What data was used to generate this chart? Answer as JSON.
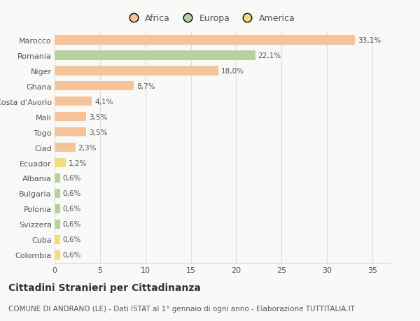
{
  "categories": [
    "Marocco",
    "Romania",
    "Niger",
    "Ghana",
    "Costa d'Avorio",
    "Mali",
    "Togo",
    "Ciad",
    "Ecuador",
    "Albania",
    "Bulgaria",
    "Polonia",
    "Svizzera",
    "Cuba",
    "Colombia"
  ],
  "values": [
    33.1,
    22.1,
    18.0,
    8.7,
    4.1,
    3.5,
    3.5,
    2.3,
    1.2,
    0.6,
    0.6,
    0.6,
    0.6,
    0.6,
    0.6
  ],
  "labels": [
    "33,1%",
    "22,1%",
    "18,0%",
    "8,7%",
    "4,1%",
    "3,5%",
    "3,5%",
    "2,3%",
    "1,2%",
    "0,6%",
    "0,6%",
    "0,6%",
    "0,6%",
    "0,6%",
    "0,6%"
  ],
  "colors": [
    "#f5c49a",
    "#b8cfa0",
    "#f5c49a",
    "#f5c49a",
    "#f5c49a",
    "#f5c49a",
    "#f5c49a",
    "#f5c49a",
    "#f5dc7a",
    "#b8cfa0",
    "#b8cfa0",
    "#b8cfa0",
    "#b8cfa0",
    "#f5dc7a",
    "#f5dc7a"
  ],
  "legend_labels": [
    "Africa",
    "Europa",
    "America"
  ],
  "legend_colors": [
    "#f5c49a",
    "#b8cfa0",
    "#f5dc7a"
  ],
  "title": "Cittadini Stranieri per Cittadinanza",
  "subtitle": "COMUNE DI ANDRANO (LE) - Dati ISTAT al 1° gennaio di ogni anno - Elaborazione TUTTITALIA.IT",
  "xlim": [
    0,
    37
  ],
  "xticks": [
    0,
    5,
    10,
    15,
    20,
    25,
    30,
    35
  ],
  "background_color": "#f9f9f7",
  "grid_color": "#dddddd",
  "text_color": "#555555",
  "title_fontsize": 10,
  "subtitle_fontsize": 7.5,
  "label_fontsize": 7.5,
  "tick_fontsize": 8,
  "legend_fontsize": 9
}
